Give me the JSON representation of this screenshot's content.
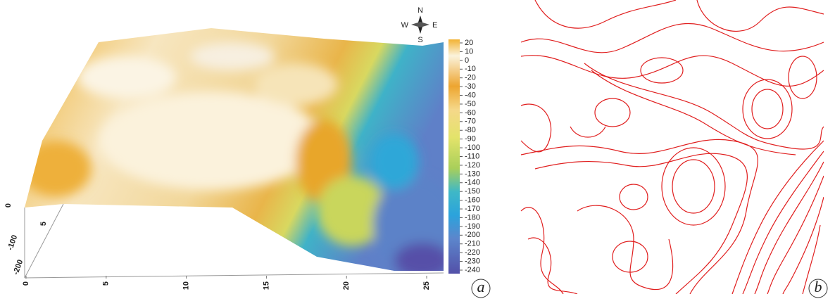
{
  "panel_a": {
    "compass": {
      "north": "N",
      "east": "E",
      "south": "S",
      "west": "W"
    },
    "colorbar_ticks": [
      20,
      10,
      0,
      -10,
      -20,
      -30,
      -40,
      -50,
      -60,
      -70,
      -80,
      -90,
      -100,
      -110,
      -120,
      -130,
      -140,
      -150,
      -160,
      -170,
      -180,
      -190,
      -200,
      -210,
      -220,
      -230,
      -240
    ],
    "x_axis_ticks": [
      0,
      5,
      10,
      15,
      20,
      25
    ],
    "y_axis_ticks": [
      0,
      5
    ],
    "z_axis_ticks": [
      -100,
      -200
    ],
    "label": "a"
  },
  "panel_b": {
    "label": "b"
  }
}
